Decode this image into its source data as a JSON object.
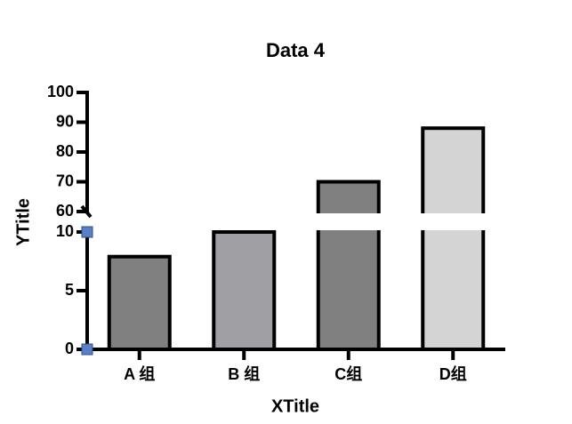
{
  "chart_data": {
    "type": "bar",
    "title": "Data 4",
    "x_label": "XTitle",
    "y_label": "YTitle",
    "categories": [
      "A 组",
      "B 组",
      "C组",
      "D组"
    ],
    "values": [
      7.9,
      10,
      70,
      88
    ],
    "colors": [
      "#808080",
      "#a0a0a4",
      "#808080",
      "#d4d4d4"
    ],
    "y_segments": [
      {
        "ylim": [
          0,
          10
        ],
        "yticks": [
          0,
          5,
          10
        ]
      },
      {
        "ylim": [
          60,
          100
        ],
        "yticks": [
          60,
          70,
          80,
          90,
          100
        ]
      }
    ]
  }
}
